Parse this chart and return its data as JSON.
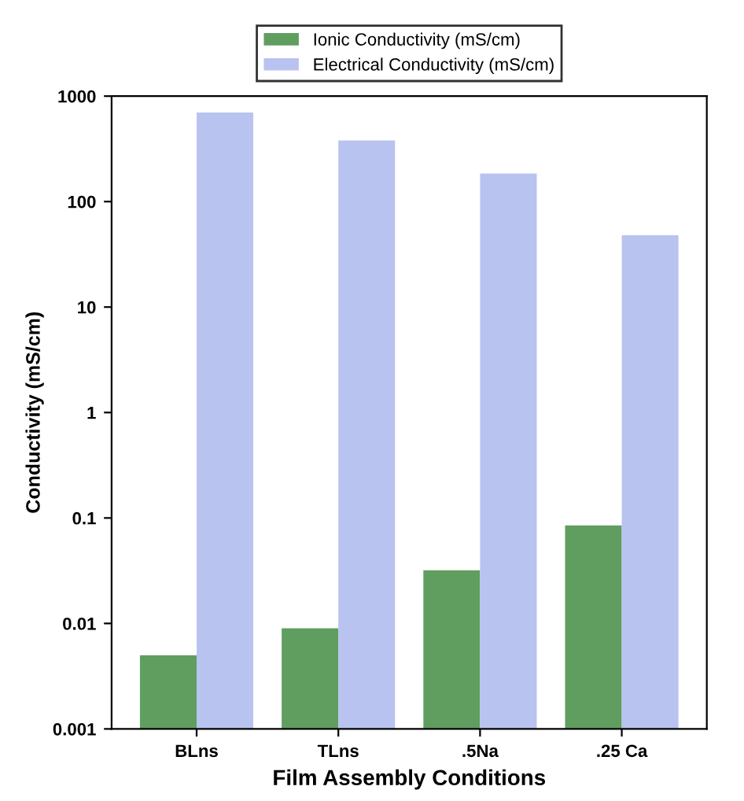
{
  "chart_data": {
    "type": "bar",
    "xlabel": "Film Assembly Conditions",
    "ylabel": "Conductivity (mS/cm)",
    "categories": [
      "BLns",
      "TLns",
      ".5Na",
      ".25 Ca"
    ],
    "series": [
      {
        "name": "Ionic Conductivity (mS/cm)",
        "color": "#5f9e5f",
        "values": [
          0.005,
          0.009,
          0.032,
          0.085
        ]
      },
      {
        "name": "Electrical Conductivity (mS/cm)",
        "color": "#b9c3f0",
        "values": [
          700,
          380,
          185,
          48
        ]
      }
    ],
    "log": "y",
    "ylim": [
      0.001,
      1000
    ],
    "yticks": [
      0.001,
      0.01,
      0.1,
      1,
      10,
      100,
      1000
    ],
    "grid": false,
    "legend": "top"
  }
}
